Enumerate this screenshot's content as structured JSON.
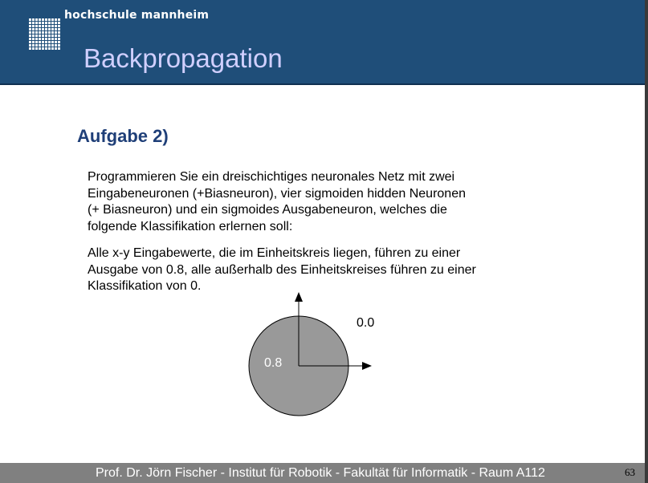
{
  "header": {
    "brand": "hochschule mannheim",
    "title": "Backpropagation",
    "logo_icon": "hochschule-grid-logo",
    "background_color": "#1f4e79"
  },
  "content": {
    "heading": "Aufgabe 2)",
    "paragraph1_lines": [
      "Programmieren Sie ein dreischichtiges neuronales Netz mit zwei",
      "Eingabeneuronen (+Biasneuron),  vier sigmoiden hidden Neuronen",
      "(+ Biasneuron) und ein sigmoides Ausgabeneuron, welches die",
      "folgende Klassifikation erlernen soll:"
    ],
    "paragraph2_lines": [
      "Alle x-y Eingabewerte, die im Einheitskreis liegen, führen zu einer",
      "Ausgabe von 0.8, alle außerhalb des Einheitskreises führen zu einer",
      "Klassifikation von 0."
    ]
  },
  "diagram": {
    "label_outside": "0.0",
    "label_inside": "0.8",
    "circle_color": "#999999"
  },
  "footer": {
    "text": "Prof. Dr. Jörn Fischer - Institut für Robotik - Fakultät für Informatik - Raum A112",
    "page_number": "63"
  }
}
